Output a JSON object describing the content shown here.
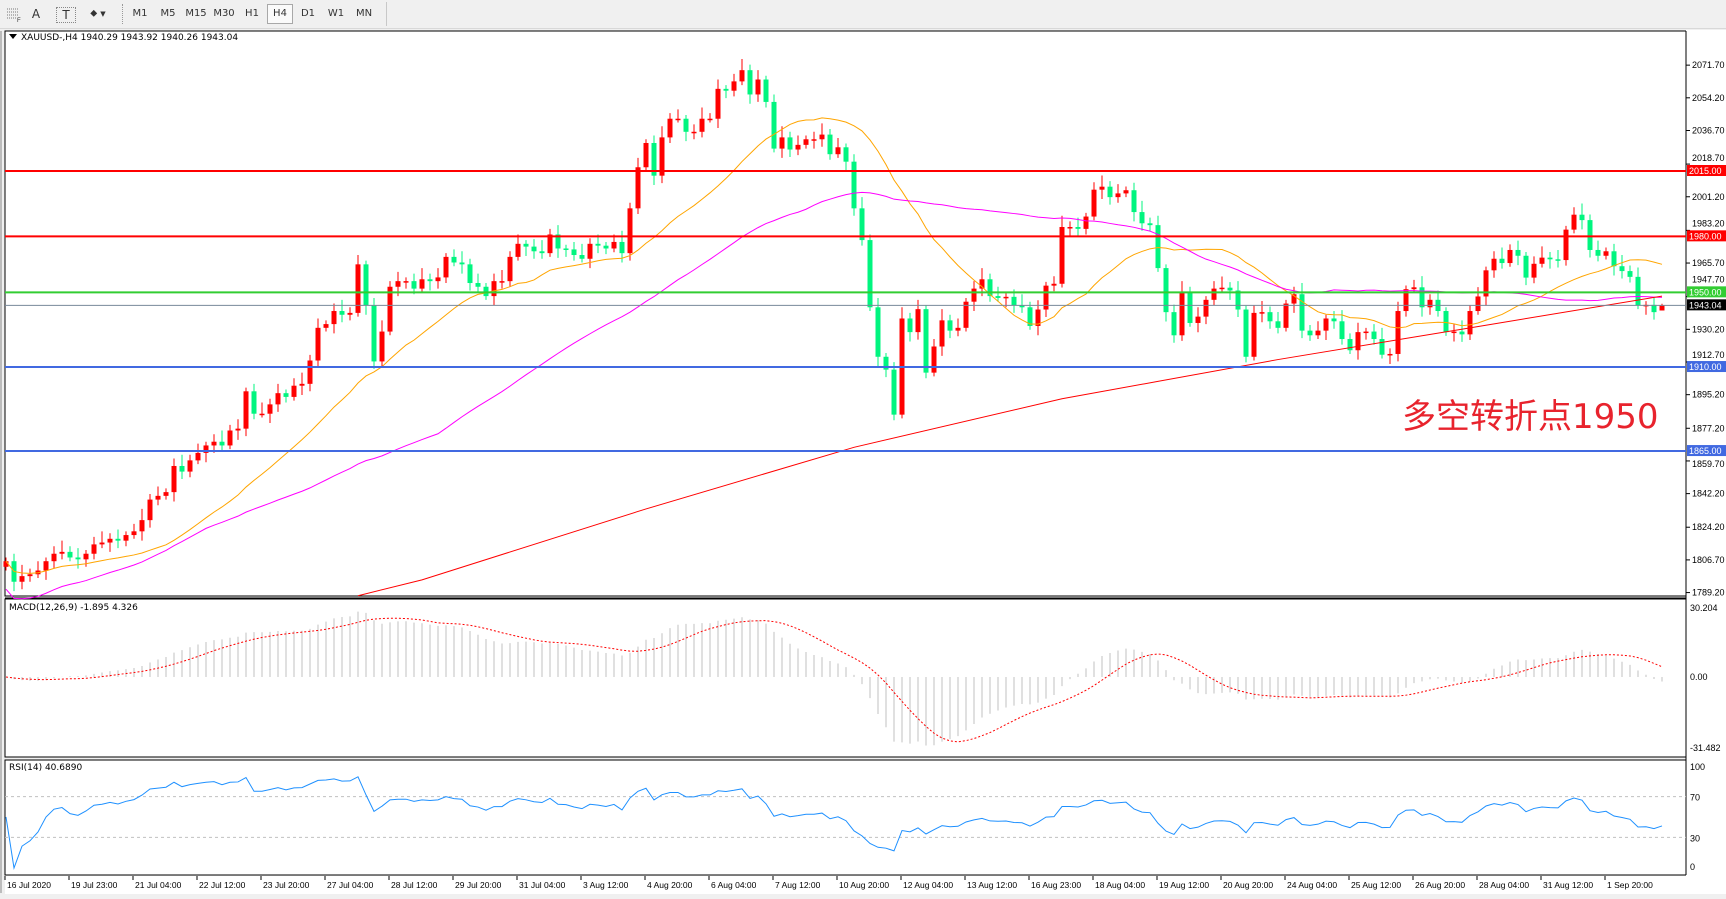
{
  "toolbar": {
    "tools": [
      {
        "name": "grid-fibo-icon",
        "label": ""
      },
      {
        "name": "text-icon",
        "label": "A"
      },
      {
        "name": "text-label-icon",
        "label": "T"
      },
      {
        "name": "arrows-icon",
        "label": "⬥"
      }
    ],
    "timeframes": [
      "M1",
      "M5",
      "M15",
      "M30",
      "H1",
      "H4",
      "D1",
      "W1",
      "MN"
    ],
    "active_timeframe": "H4"
  },
  "chart_header": {
    "text": "XAUUSD-,H4  1940.29 1943.92 1940.26 1943.04"
  },
  "annotation": "多空转折点1950",
  "chart_data": {
    "type": "candlestick",
    "symbol": "XAUUSD-",
    "timeframe": "H4",
    "last_ohlc": {
      "open": 1940.29,
      "high": 1943.92,
      "low": 1940.26,
      "close": 1943.04
    },
    "colors": {
      "up": "#ff0000",
      "down": "#00f57f",
      "ma_fast": "#ffa500",
      "ma_mid": "#ff00ff",
      "ma_long": "#ff0000"
    },
    "closes": [
      1806,
      1795,
      1798,
      1799,
      1801,
      1806,
      1810,
      1811,
      1808,
      1807,
      1810,
      1815,
      1816,
      1818,
      1817,
      1820,
      1822,
      1828,
      1839,
      1841,
      1843,
      1857,
      1854,
      1860,
      1864,
      1868,
      1870,
      1868,
      1876,
      1877,
      1897,
      1885,
      1885,
      1890,
      1896,
      1894,
      1900,
      1901,
      1913.5,
      1931,
      1933,
      1940,
      1938,
      1939,
      1965,
      1943,
      1913,
      1929,
      1953,
      1956,
      1956,
      1952,
      1957,
      1956,
      1958,
      1969,
      1966,
      1965,
      1955,
      1953,
      1948,
      1956,
      1956,
      1969,
      1976,
      1974.5,
      1972,
      1971,
      1981,
      1973.5,
      1973,
      1970,
      1968,
      1976,
      1975,
      1973.5,
      1977,
      1971,
      1995,
      2017,
      2030,
      2012.5,
      2033,
      2043,
      2043,
      2036,
      2036,
      2043,
      2043,
      2059,
      2058,
      2063,
      2069,
      2056,
      2064,
      2052,
      2027,
      2033,
      2026.5,
      2029,
      2032,
      2032,
      2034.5,
      2024,
      2027.7,
      2020,
      1995,
      1978,
      1942,
      1915.5,
      1908.6,
      1884.5,
      1936,
      1928.7,
      1941,
      1907,
      1921,
      1935,
      1929.5,
      1931,
      1945,
      1952,
      1957,
      1948,
      1947,
      1947.6,
      1943,
      1942,
      1932,
      1940.8,
      1953.6,
      1954.6,
      1985,
      1985,
      1984,
      1990.6,
      2005,
      2006.6,
      2001,
      2003,
      2004.7,
      1993,
      1987,
      1986,
      1963,
      1939.4,
      1927,
      1950,
      1933.6,
      1937,
      1946,
      1952,
      1952.5,
      1951,
      1940.8,
      1915.5,
      1939,
      1939.4,
      1934.5,
      1931,
      1944,
      1949,
      1929.5,
      1927,
      1929.5,
      1936,
      1934.5,
      1925,
      1919,
      1928.7,
      1929,
      1925,
      1916.6,
      1917,
      1940,
      1951.7,
      1952.7,
      1942,
      1946,
      1940,
      1928.7,
      1929,
      1927.5,
      1940,
      1947.8,
      1961.8,
      1968,
      1965.7,
      1972.7,
      1969.6,
      1957.9,
      1965.3,
      1968.6,
      1967.7,
      1967.3,
      1983.6,
      1991.6,
      1988.7,
      1972.7,
      1969.6,
      1972,
      1964,
      1961.4,
      1958.3,
      1943,
      1943.3,
      1939.4,
      1943.04
    ],
    "ma_long_points": [
      [
        44,
        1787.5
      ],
      [
        52,
        1796
      ],
      [
        80,
        1834
      ],
      [
        106,
        1867
      ],
      [
        132,
        1893
      ],
      [
        159,
        1914
      ],
      [
        183,
        1931
      ],
      [
        207,
        1948
      ]
    ],
    "price_axis": {
      "ticks": [
        "2071.70",
        "2054.20",
        "2036.70",
        "2018.70",
        "2001.20",
        "1983.20",
        "1965.70",
        "1947.70",
        "1930.20",
        "1912.70",
        "1895.20",
        "1877.20",
        "1859.70",
        "1842.20",
        "1824.20",
        "1806.70",
        "1789.20"
      ],
      "range": [
        1787.4,
        2090
      ]
    },
    "levels": [
      {
        "price": 2015,
        "color": "#ff0000",
        "label": "2015.00",
        "text_color": "#ffffff"
      },
      {
        "price": 1980,
        "color": "#ff0000",
        "label": "1980.00",
        "text_color": "#ffffff"
      },
      {
        "price": 1950,
        "color": "#32cd32",
        "label": "1950.00",
        "text_color": "#ffffff"
      },
      {
        "price": 1910,
        "color": "#4169e1",
        "label": "1910.00",
        "text_color": "#ffffff"
      },
      {
        "price": 1865,
        "color": "#4169e1",
        "label": "1865.00",
        "text_color": "#ffffff"
      }
    ],
    "bid_line": {
      "price": 1943.04,
      "color": "#778899",
      "label": "1943.04"
    },
    "time_labels": [
      "16 Jul 2020",
      "19 Jul 23:00",
      "21 Jul 04:00",
      "22 Jul 12:00",
      "23 Jul 20:00",
      "27 Jul 04:00",
      "28 Jul 12:00",
      "29 Jul 20:00",
      "31 Jul 04:00",
      "3 Aug 12:00",
      "4 Aug 20:00",
      "6 Aug 04:00",
      "7 Aug 12:00",
      "10 Aug 20:00",
      "12 Aug 04:00",
      "13 Aug 12:00",
      "16 Aug 23:00",
      "18 Aug 04:00",
      "19 Aug 12:00",
      "20 Aug 20:00",
      "24 Aug 04:00",
      "25 Aug 12:00",
      "26 Aug 20:00",
      "28 Aug 04:00",
      "31 Aug 12:00",
      "1 Sep 20:00"
    ],
    "macd": {
      "label": "MACD(12,26,9) -1.895 4.326",
      "axis_labels": [
        "30.204",
        "0.00",
        "-31.482"
      ],
      "range": [
        -31.482,
        30.204
      ],
      "hist_color": "#c0c0c0",
      "signal_color": "#ff0000"
    },
    "rsi": {
      "label": "RSI(14) 40.6890",
      "axis_labels": [
        "100",
        "70",
        "30",
        "0"
      ],
      "levels": [
        70,
        30
      ],
      "range": [
        0,
        100
      ],
      "line_color": "#1e90ff"
    }
  }
}
